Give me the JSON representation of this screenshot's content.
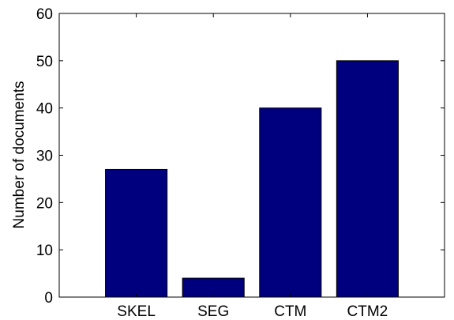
{
  "chart_data": {
    "type": "bar",
    "categories": [
      "SKEL",
      "SEG",
      "CTM",
      "CTM2"
    ],
    "values": [
      27,
      4,
      40,
      50
    ],
    "title": "",
    "xlabel": "",
    "ylabel": "Number of documents",
    "ylim": [
      0,
      60
    ],
    "yticks": [
      "0",
      "10",
      "20",
      "30",
      "40",
      "50",
      "60"
    ],
    "grid": false,
    "bar_color": "#00007f",
    "edge_color": "#000000"
  }
}
